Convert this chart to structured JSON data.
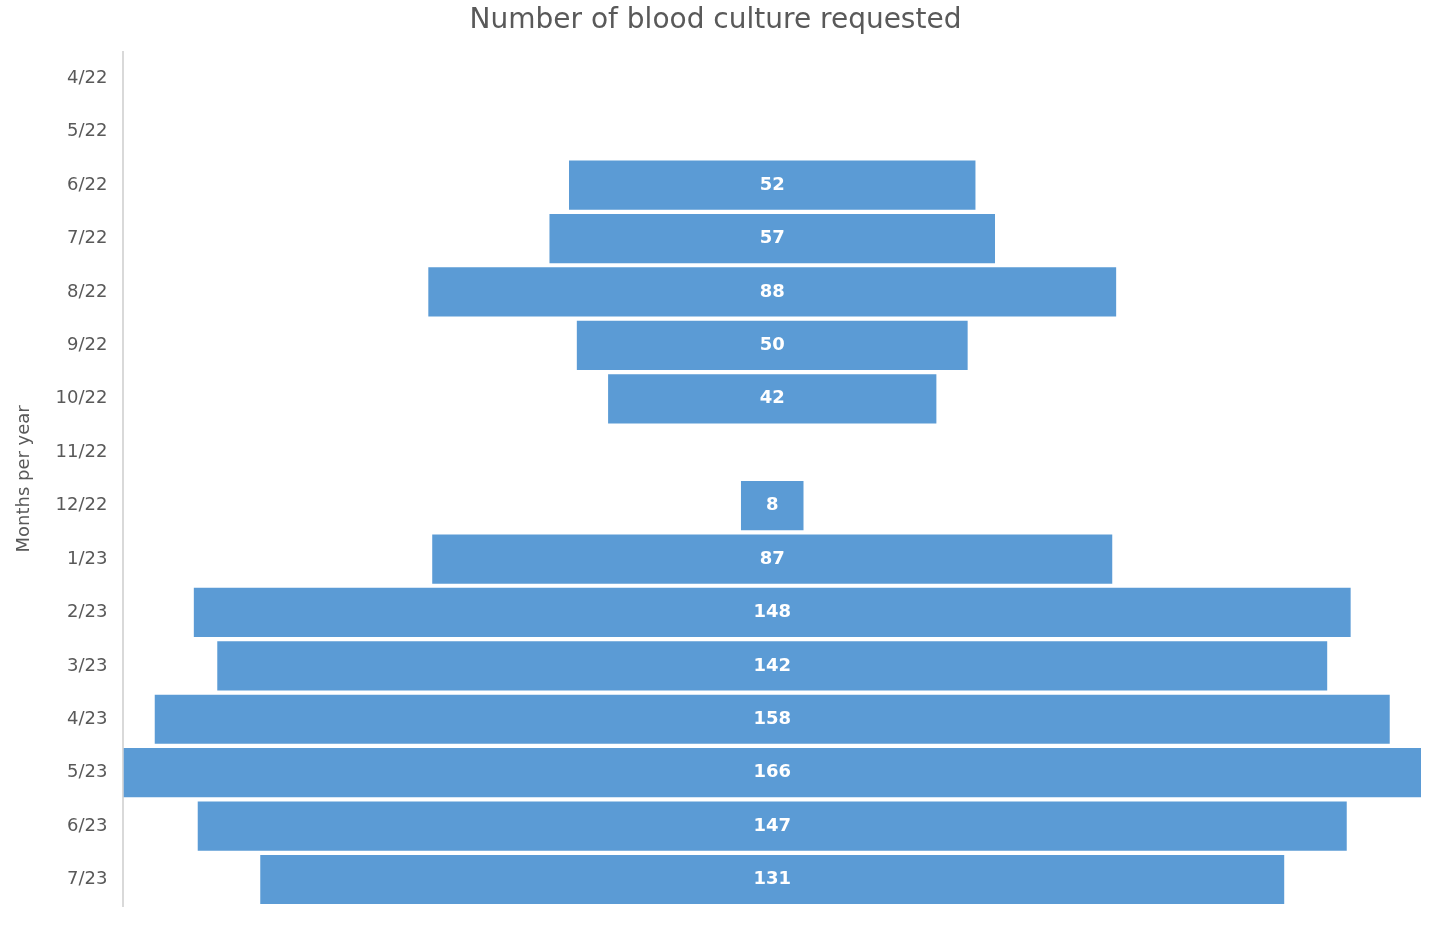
{
  "chart_data": {
    "type": "other",
    "title": "Number of blood culture requested",
    "ylabel": "Months per year",
    "categories": [
      "4/22",
      "5/22",
      "6/22",
      "7/22",
      "8/22",
      "9/22",
      "10/22",
      "11/22",
      "12/22",
      "1/23",
      "2/23",
      "3/23",
      "4/23",
      "5/23",
      "6/23",
      "7/23"
    ],
    "values": [
      null,
      null,
      52,
      57,
      88,
      50,
      42,
      null,
      8,
      87,
      148,
      142,
      158,
      166,
      147,
      131
    ],
    "color": "#5b9bd5",
    "data_labels": true,
    "legend": false
  }
}
